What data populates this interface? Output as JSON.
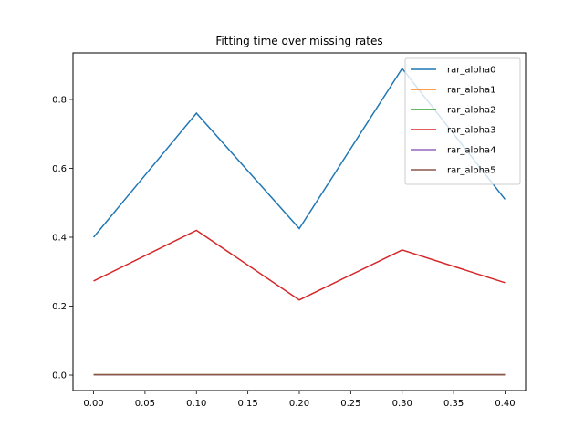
{
  "chart_data": {
    "type": "line",
    "title": "Fitting time over missing rates",
    "xlabel": "",
    "ylabel": "",
    "x": [
      0.0,
      0.1,
      0.2,
      0.3,
      0.4
    ],
    "x_ticks": [
      "0.00",
      "0.05",
      "0.10",
      "0.15",
      "0.20",
      "0.25",
      "0.30",
      "0.35",
      "0.40"
    ],
    "x_tick_values": [
      0.0,
      0.05,
      0.1,
      0.15,
      0.2,
      0.25,
      0.3,
      0.35,
      0.4
    ],
    "y_ticks": [
      "0.0",
      "0.2",
      "0.4",
      "0.6",
      "0.8"
    ],
    "y_tick_values": [
      0.0,
      0.2,
      0.4,
      0.6,
      0.8
    ],
    "xlim": [
      -0.02,
      0.42
    ],
    "ylim": [
      -0.045,
      0.935
    ],
    "grid": false,
    "legend_position": "top-right",
    "series": [
      {
        "name": "rar_alpha0",
        "color": "#1f77b4",
        "values": [
          0.4,
          0.76,
          0.425,
          0.89,
          0.51
        ]
      },
      {
        "name": "rar_alpha1",
        "color": "#ff7f0e",
        "values": [
          0.001,
          0.001,
          0.001,
          0.001,
          0.001
        ]
      },
      {
        "name": "rar_alpha2",
        "color": "#2ca02c",
        "values": [
          0.001,
          0.001,
          0.001,
          0.001,
          0.001
        ]
      },
      {
        "name": "rar_alpha3",
        "color": "#d62728",
        "values": [
          0.273,
          0.42,
          0.218,
          0.363,
          0.268
        ]
      },
      {
        "name": "rar_alpha4",
        "color": "#9467bd",
        "values": [
          0.001,
          0.001,
          0.001,
          0.001,
          0.001
        ]
      },
      {
        "name": "rar_alpha5",
        "color": "#8c564b",
        "values": [
          0.001,
          0.001,
          0.001,
          0.001,
          0.001
        ]
      }
    ]
  }
}
